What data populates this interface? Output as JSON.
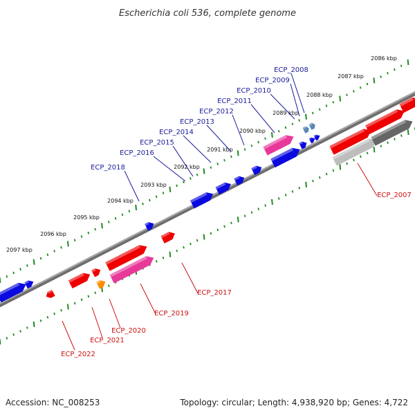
{
  "title": "Escherichia coli 536, complete genome",
  "footer": {
    "accession": "Accession: NC_008253",
    "summary": "Topology: circular; Length: 4,938,920 bp; Genes: 4,722"
  },
  "colors": {
    "backbone": "#8c8c8c",
    "tick": "#1f8a1f",
    "gene_blue": "#0a0ae0",
    "gene_red": "#ee0000",
    "gene_pink": "#e8389a",
    "gene_orange": "#ff8c00",
    "gene_steel": "#5a86b8",
    "gene_gray": "#666666",
    "gene_lightgray": "#bdbdbd",
    "label_blue": "#1a1a9a",
    "label_red": "#cc1111"
  },
  "kbp_labels": [
    "2086 kbp",
    "2087 kbp",
    "2088 kbp",
    "2089 kbp",
    "2090 kbp",
    "2091 kbp",
    "2092 kbp",
    "2093 kbp",
    "2094 kbp",
    "2095 kbp",
    "2096 kbp",
    "2097 kbp"
  ],
  "gene_labels_top": [
    "ECP_2008",
    "ECP_2009",
    "ECP_2010",
    "ECP_2011",
    "ECP_2012",
    "ECP_2013",
    "ECP_2014",
    "ECP_2015",
    "ECP_2016",
    "ECP_2018"
  ],
  "gene_labels_bottom": [
    "ECP_2007",
    "ECP_2017",
    "ECP_2019",
    "ECP_2020",
    "ECP_2021",
    "ECP_2022"
  ]
}
